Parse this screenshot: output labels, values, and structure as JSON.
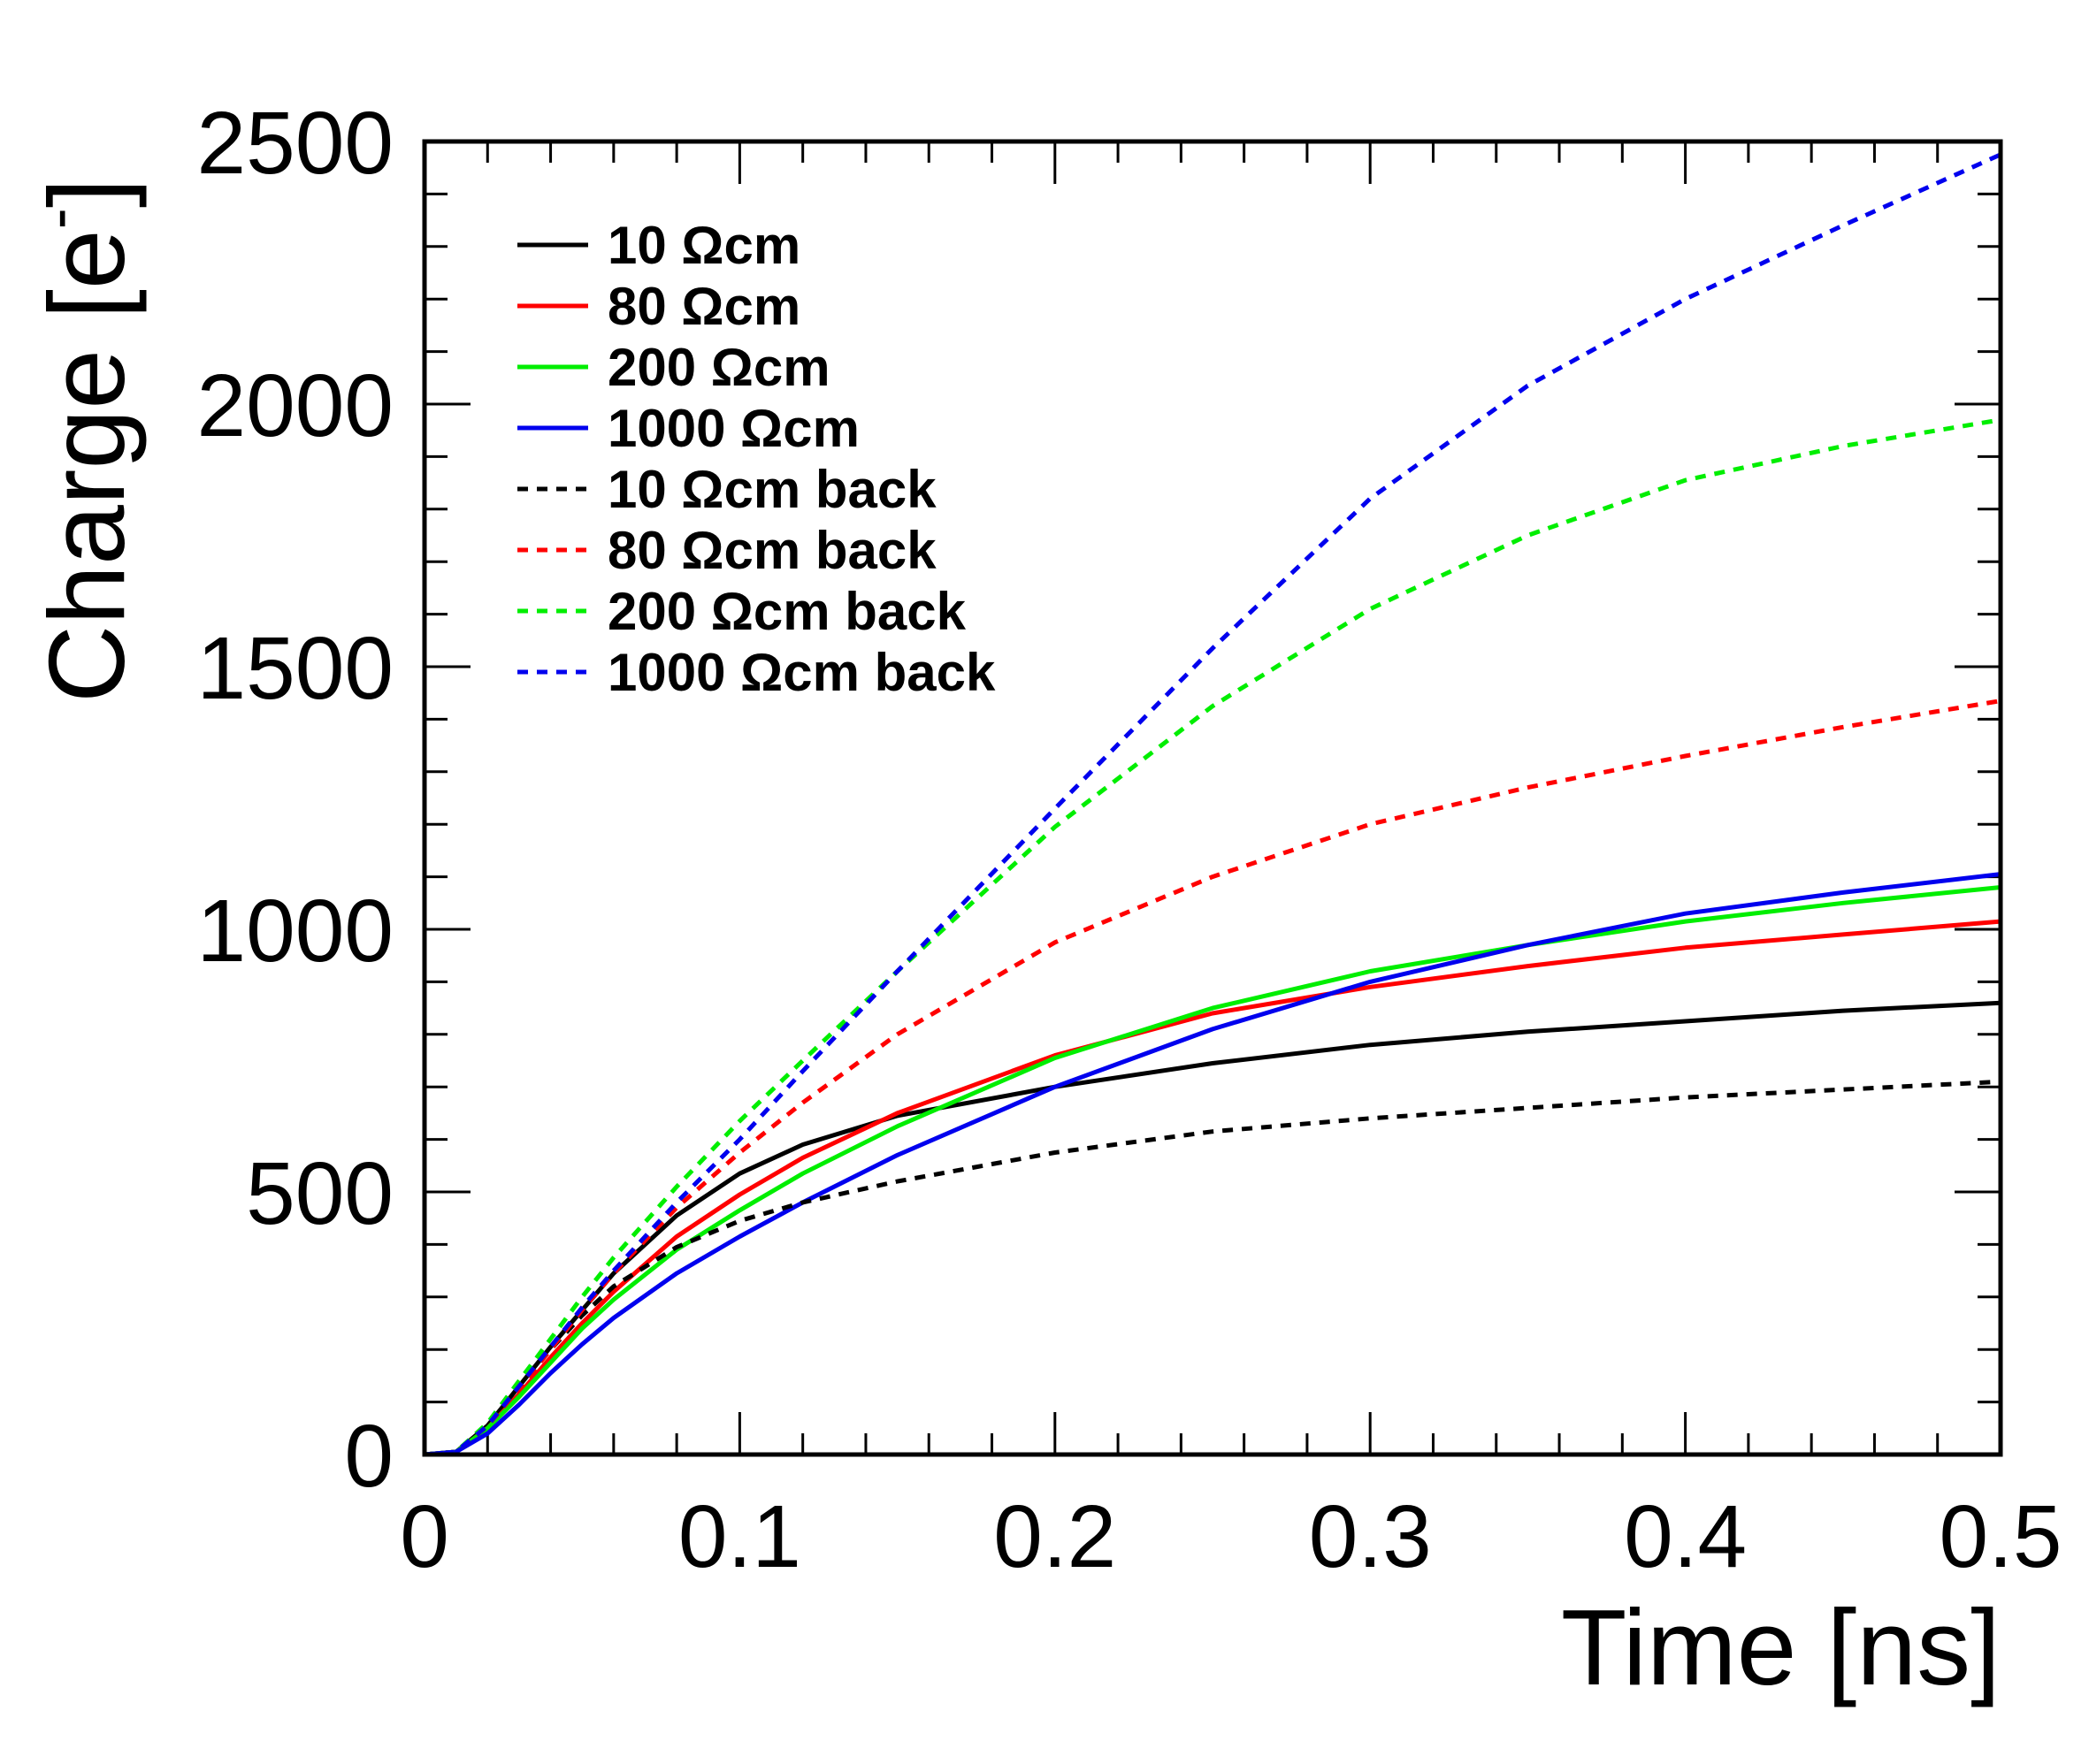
{
  "chart_data": {
    "type": "line",
    "title": "",
    "xlabel": "Time [ns]",
    "ylabel": "Charge [e",
    "ylabel_superscript": "-",
    "ylabel_close": "]",
    "xlim": [
      0,
      0.5
    ],
    "ylim": [
      0,
      2500
    ],
    "x_ticks": [
      0,
      0.1,
      0.2,
      0.3,
      0.4,
      0.5
    ],
    "x_tick_labels": [
      "0",
      "0.1",
      "0.2",
      "0.3",
      "0.4",
      "0.5"
    ],
    "y_ticks": [
      0,
      500,
      1000,
      1500,
      2000,
      2500
    ],
    "y_tick_labels": [
      "0",
      "500",
      "1000",
      "1500",
      "2000",
      "2500"
    ],
    "grid": false,
    "legend_position": "top-left",
    "x": [
      0,
      0.01,
      0.02,
      0.03,
      0.04,
      0.05,
      0.06,
      0.08,
      0.1,
      0.12,
      0.15,
      0.2,
      0.25,
      0.3,
      0.35,
      0.4,
      0.45,
      0.5
    ],
    "series": [
      {
        "name": "10 Ωcm",
        "color": "#000000",
        "dash": false,
        "values": [
          0,
          5,
          55,
          130,
          205,
          275,
          345,
          455,
          535,
          590,
          645,
          700,
          745,
          780,
          805,
          825,
          845,
          860
        ]
      },
      {
        "name": "80 Ωcm",
        "color": "#ff0000",
        "dash": false,
        "values": [
          0,
          5,
          50,
          115,
          185,
          250,
          310,
          415,
          495,
          565,
          650,
          760,
          840,
          890,
          930,
          965,
          990,
          1015
        ]
      },
      {
        "name": "200 Ωcm",
        "color": "#00ee00",
        "dash": false,
        "values": [
          0,
          5,
          50,
          110,
          175,
          240,
          295,
          390,
          465,
          535,
          625,
          755,
          850,
          920,
          970,
          1015,
          1050,
          1080
        ]
      },
      {
        "name": "1000 Ωcm",
        "color": "#0000ee",
        "dash": false,
        "values": [
          0,
          5,
          40,
          95,
          155,
          210,
          260,
          345,
          415,
          480,
          570,
          700,
          810,
          900,
          970,
          1030,
          1070,
          1105
        ]
      },
      {
        "name": "10 Ωcm back",
        "color": "#000000",
        "dash": true,
        "values": [
          0,
          5,
          55,
          130,
          200,
          265,
          320,
          395,
          445,
          480,
          520,
          575,
          615,
          640,
          660,
          680,
          695,
          710
        ]
      },
      {
        "name": "80 Ωcm back",
        "color": "#ff0000",
        "dash": true,
        "values": [
          0,
          5,
          55,
          125,
          200,
          275,
          345,
          470,
          575,
          670,
          800,
          975,
          1100,
          1200,
          1270,
          1330,
          1385,
          1435
        ]
      },
      {
        "name": "200 Ωcm back",
        "color": "#00ee00",
        "dash": true,
        "values": [
          0,
          5,
          60,
          140,
          220,
          300,
          375,
          510,
          635,
          750,
          920,
          1195,
          1425,
          1610,
          1750,
          1855,
          1920,
          1970
        ]
      },
      {
        "name": "1000 Ωcm back",
        "color": "#0000ee",
        "dash": true,
        "values": [
          0,
          5,
          55,
          130,
          205,
          280,
          350,
          480,
          600,
          730,
          920,
          1230,
          1535,
          1820,
          2035,
          2200,
          2340,
          2475
        ]
      }
    ]
  }
}
